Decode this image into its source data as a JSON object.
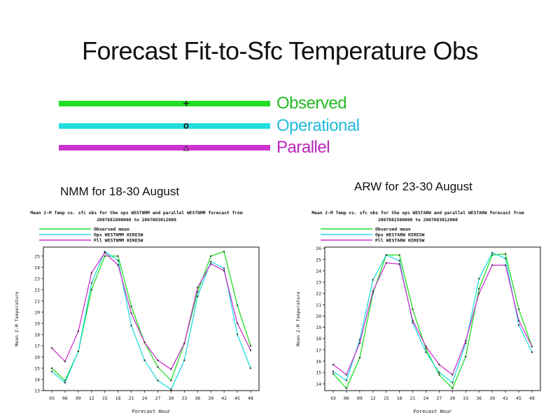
{
  "slide": {
    "title": "Forecast Fit-to-Sfc Temperature Obs",
    "legend": [
      {
        "label": "Observed",
        "color": "#22dd22"
      },
      {
        "label": "Operational",
        "color": "#22dddd"
      },
      {
        "label": "Parallel",
        "color": "#cc33cc"
      }
    ],
    "left_caption": "NMM for 18-30 August",
    "right_caption": "ARW for 23-30 August"
  },
  "chart_data": [
    {
      "type": "line",
      "title": "Mean 2-M Temp vs. sfc obs for the ops WESTNMM and parallel WESTNMM forecast from",
      "subtitle": "2007081800000 to 2007083012000",
      "xlabel": "Forecast Hour",
      "ylabel": "Mean 2-M Temperature",
      "categories": [
        "03",
        "06",
        "09",
        "12",
        "15",
        "18",
        "21",
        "24",
        "27",
        "30",
        "33",
        "36",
        "39",
        "42",
        "45",
        "48"
      ],
      "ylim": [
        13,
        25.8
      ],
      "yticks": [
        "13",
        "14",
        "15",
        "16",
        "17",
        "18",
        "19",
        "20",
        "21",
        "22",
        "23",
        "24",
        "25"
      ],
      "legend_position": "top-left",
      "series": [
        {
          "name": "Observed mean",
          "color": "#22dd22",
          "values": [
            15.0,
            13.9,
            16.5,
            22.0,
            25.0,
            25.0,
            20.5,
            17.3,
            15.1,
            13.9,
            17.2,
            21.8,
            25.0,
            25.4,
            20.6,
            17.0
          ]
        },
        {
          "name": "Ops WESTNMM HIRESW",
          "color": "#22dddd",
          "values": [
            14.7,
            13.7,
            16.5,
            22.6,
            25.4,
            24.6,
            18.8,
            15.7,
            13.9,
            13.1,
            15.7,
            21.4,
            24.5,
            23.9,
            18.0,
            15.0
          ]
        },
        {
          "name": "Pll WESTNMM HIRESW",
          "color": "#cc33cc",
          "values": [
            16.8,
            15.6,
            18.3,
            23.5,
            25.3,
            24.2,
            19.9,
            17.3,
            15.7,
            14.9,
            17.2,
            22.2,
            24.3,
            23.7,
            19.0,
            16.6
          ]
        }
      ]
    },
    {
      "type": "line",
      "title": "Mean 2-M Temp vs. sfc obs for the ops WESTARW and parallel WESTARW forecast from",
      "subtitle": "2007082300000 to 2007083012000",
      "xlabel": "Forecast Hour",
      "ylabel": "Mean 2-M Temperature",
      "categories": [
        "03",
        "06",
        "09",
        "12",
        "15",
        "18",
        "21",
        "24",
        "27",
        "30",
        "33",
        "36",
        "39",
        "42",
        "45",
        "48"
      ],
      "ylim": [
        13.4,
        26.1
      ],
      "yticks": [
        "14",
        "15",
        "16",
        "17",
        "18",
        "19",
        "20",
        "21",
        "22",
        "23",
        "24",
        "25",
        "26"
      ],
      "legend_position": "top-left",
      "series": [
        {
          "name": "Observed mean",
          "color": "#22dd22",
          "values": [
            14.9,
            13.6,
            16.3,
            22.0,
            25.4,
            25.4,
            20.6,
            17.1,
            14.8,
            13.6,
            16.4,
            22.4,
            25.4,
            25.5,
            20.6,
            17.3
          ]
        },
        {
          "name": "Ops WESTARW HIRESW",
          "color": "#22dddd",
          "values": [
            15.1,
            14.3,
            17.9,
            23.2,
            25.4,
            24.9,
            19.4,
            16.8,
            15.0,
            14.1,
            17.6,
            23.3,
            25.6,
            25.1,
            19.2,
            16.8
          ]
        },
        {
          "name": "Pll WESTARW HIRESW",
          "color": "#cc33cc",
          "values": [
            15.7,
            14.8,
            17.6,
            22.2,
            24.7,
            24.6,
            19.6,
            17.3,
            15.7,
            14.8,
            17.8,
            22.0,
            24.5,
            24.5,
            19.6,
            17.3
          ]
        }
      ]
    }
  ]
}
